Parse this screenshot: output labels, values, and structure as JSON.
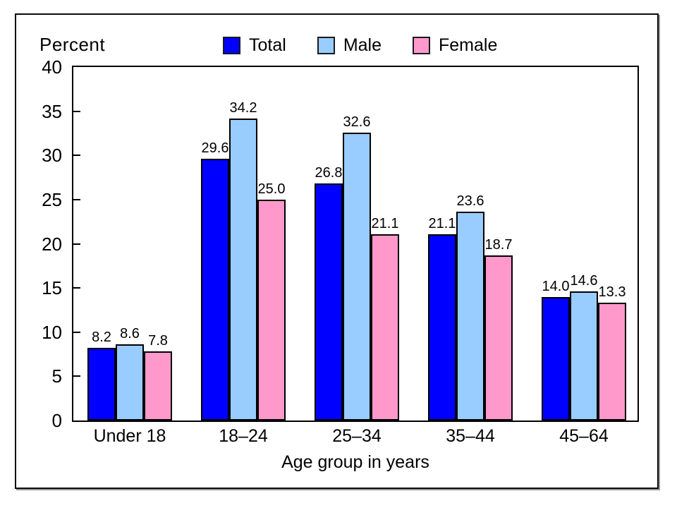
{
  "chart_data": {
    "type": "bar",
    "title": "",
    "ylabel": "Percent",
    "xlabel": "Age group in years",
    "categories": [
      "Under 18",
      "18–24",
      "25–34",
      "35–44",
      "45–64"
    ],
    "series": [
      {
        "name": "Total",
        "color": "#0000FF",
        "values": [
          8.2,
          29.6,
          26.8,
          21.1,
          14.0
        ]
      },
      {
        "name": "Male",
        "color": "#99CCFF",
        "values": [
          8.6,
          34.2,
          32.6,
          23.6,
          14.6
        ]
      },
      {
        "name": "Female",
        "color": "#FF99CC",
        "values": [
          7.8,
          25.0,
          21.1,
          18.7,
          13.3
        ]
      }
    ],
    "ylim": [
      0,
      40
    ],
    "yticks": [
      0,
      5,
      10,
      15,
      20,
      25,
      30,
      35,
      40
    ],
    "value_label_decimals": 1,
    "legend_position": "top",
    "grid": false,
    "bar_border_color": "#000000",
    "frame_color": "#000000"
  }
}
